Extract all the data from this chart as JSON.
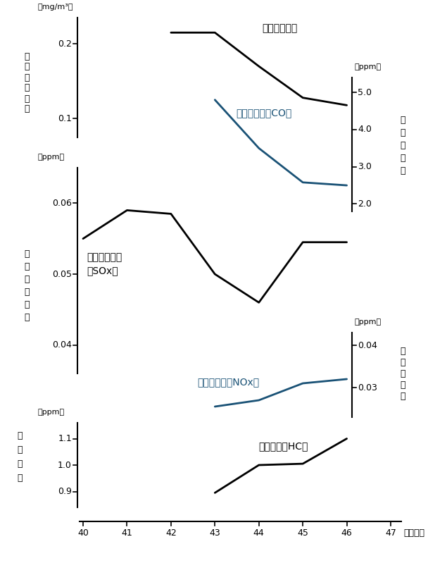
{
  "bg_color": "#ffffff",
  "x_min": 40,
  "x_max": 47,
  "x_ticks": [
    40,
    41,
    42,
    43,
    44,
    45,
    46,
    47
  ],
  "suspended_dust": {
    "label": "浮遊ふんじん",
    "x": [
      42,
      43,
      44,
      45,
      46
    ],
    "y": [
      0.215,
      0.215,
      0.17,
      0.128,
      0.118
    ],
    "color": "#000000",
    "ymin": 0.075,
    "ymax": 0.235,
    "yticks": [
      0.1,
      0.2
    ],
    "unit": "(mg/m³)"
  },
  "CO": {
    "label": "一酸化炭素（CO）",
    "x": [
      43,
      44,
      45,
      46
    ],
    "y": [
      4.8,
      3.5,
      2.58,
      2.5
    ],
    "color": "#1a5276",
    "ymin": 1.8,
    "ymax": 5.4,
    "yticks": [
      2.0,
      3.0,
      4.0,
      5.0
    ],
    "unit": "(ppm)"
  },
  "SOx": {
    "label": "いおう酸化物（SOx）",
    "x": [
      40,
      41,
      42,
      43,
      44,
      45,
      46
    ],
    "y": [
      0.055,
      0.059,
      0.0585,
      0.05,
      0.046,
      0.0545,
      0.0545
    ],
    "color": "#000000",
    "ymin": 0.036,
    "ymax": 0.065,
    "yticks": [
      0.04,
      0.05,
      0.06
    ],
    "unit": "(ppm)"
  },
  "NOx": {
    "label": "窒素酸化物（NOx）",
    "x": [
      43,
      44,
      45,
      46
    ],
    "y": [
      0.0255,
      0.027,
      0.031,
      0.032
    ],
    "color": "#1a5276",
    "ymin": 0.023,
    "ymax": 0.043,
    "yticks": [
      0.03,
      0.04
    ],
    "unit": "(ppm)"
  },
  "HC": {
    "label": "炭化水素（HC）",
    "x": [
      43,
      44,
      45,
      46
    ],
    "y": [
      0.895,
      1.0,
      1.005,
      1.1
    ],
    "color": "#000000",
    "ymin": 0.84,
    "ymax": 1.16,
    "yticks": [
      0.9,
      1.0,
      1.1
    ],
    "unit": "(ppm)"
  }
}
